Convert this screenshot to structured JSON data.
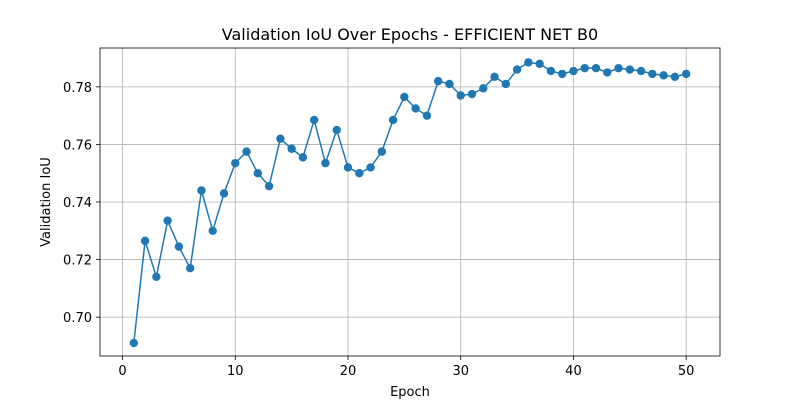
{
  "chart_data": {
    "type": "line",
    "title": "Validation IoU Over Epochs - EFFICIENT NET B0",
    "xlabel": "Epoch",
    "ylabel": "Validation IoU",
    "xlim": [
      -2,
      53
    ],
    "ylim": [
      0.6865,
      0.7935
    ],
    "xticks": [
      0,
      10,
      20,
      30,
      40,
      50
    ],
    "yticks": [
      0.7,
      0.72,
      0.74,
      0.76,
      0.78
    ],
    "ytick_labels": [
      "0.70",
      "0.72",
      "0.74",
      "0.76",
      "0.78"
    ],
    "grid": true,
    "color": "#1f77b4",
    "marker": "circle",
    "series": [
      {
        "x": [
          1,
          2,
          3,
          4,
          5,
          6,
          7,
          8,
          9,
          10,
          11,
          12,
          13,
          14,
          15,
          16,
          17,
          18,
          19,
          20,
          21,
          22,
          23,
          24,
          25,
          26,
          27,
          28,
          29,
          30,
          31,
          32,
          33,
          34,
          35,
          36,
          37,
          38,
          39,
          40,
          41,
          42,
          43,
          44,
          45,
          46,
          47,
          48,
          49,
          50
        ],
        "values": [
          0.691,
          0.7265,
          0.714,
          0.7335,
          0.7245,
          0.717,
          0.744,
          0.73,
          0.743,
          0.7535,
          0.7575,
          0.75,
          0.7455,
          0.762,
          0.7585,
          0.7555,
          0.7685,
          0.7535,
          0.765,
          0.752,
          0.75,
          0.752,
          0.7575,
          0.7685,
          0.7765,
          0.7725,
          0.77,
          0.782,
          0.781,
          0.777,
          0.7775,
          0.7795,
          0.7835,
          0.781,
          0.786,
          0.7885,
          0.788,
          0.7855,
          0.7845,
          0.7855,
          0.7865,
          0.7865,
          0.785,
          0.7865,
          0.786,
          0.7855,
          0.7845,
          0.784,
          0.7835,
          0.7845
        ]
      }
    ]
  }
}
